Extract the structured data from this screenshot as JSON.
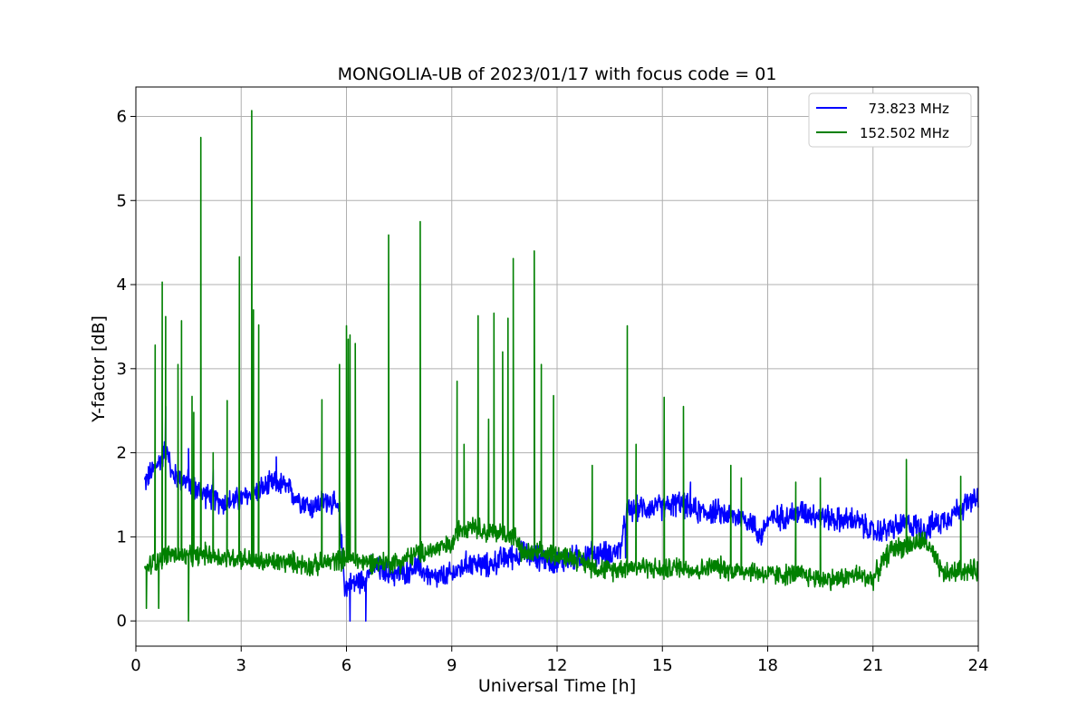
{
  "chart_data": {
    "type": "line",
    "title": "MONGOLIA-UB of 2023/01/17 with focus code = 01",
    "xlabel": "Universal Time [h]",
    "ylabel": "Y-factor [dB]",
    "xlim": [
      0,
      24
    ],
    "ylim": [
      -0.3,
      6.35
    ],
    "xticks": [
      0,
      3,
      6,
      9,
      12,
      15,
      18,
      21,
      24
    ],
    "yticks": [
      0,
      1,
      2,
      3,
      4,
      5,
      6
    ],
    "grid": true,
    "legend_position": "top-right",
    "series": [
      {
        "name": "  73.823 MHz",
        "color": "#0000ff",
        "x": [
          0.25,
          0.5,
          0.75,
          0.9,
          1.0,
          1.25,
          1.5,
          1.75,
          2.0,
          2.5,
          3.0,
          3.5,
          4.0,
          4.25,
          4.5,
          5.0,
          5.5,
          5.8,
          5.95,
          6.2,
          6.5,
          6.75,
          7.0,
          7.5,
          8.0,
          8.5,
          9.0,
          9.5,
          10.0,
          10.5,
          11.0,
          11.5,
          12.0,
          12.5,
          13.0,
          13.5,
          13.8,
          14.0,
          14.5,
          15.0,
          15.5,
          16.0,
          16.5,
          17.0,
          17.5,
          17.8,
          18.0,
          18.5,
          19.0,
          19.5,
          20.0,
          20.5,
          21.0,
          21.5,
          22.0,
          22.5,
          23.0,
          23.5,
          24.0
        ],
        "y": [
          1.65,
          1.8,
          1.95,
          2.1,
          1.75,
          1.7,
          1.65,
          1.55,
          1.5,
          1.4,
          1.45,
          1.55,
          1.65,
          1.6,
          1.5,
          1.35,
          1.45,
          1.3,
          0.4,
          0.45,
          0.5,
          0.65,
          0.6,
          0.55,
          0.65,
          0.5,
          0.55,
          0.7,
          0.65,
          0.75,
          0.8,
          0.75,
          0.7,
          0.75,
          0.8,
          0.8,
          0.85,
          1.3,
          1.35,
          1.35,
          1.4,
          1.3,
          1.3,
          1.25,
          1.2,
          1.0,
          1.2,
          1.25,
          1.3,
          1.25,
          1.2,
          1.2,
          1.05,
          1.1,
          1.15,
          1.1,
          1.2,
          1.35,
          1.45
        ],
        "spikes": [
          [
            0.85,
            2.55
          ],
          [
            1.5,
            2.05
          ],
          [
            2.2,
            1.8
          ],
          [
            4.0,
            1.95
          ],
          [
            6.1,
            0.0
          ],
          [
            6.55,
            0.0
          ],
          [
            13.95,
            0.75
          ],
          [
            15.8,
            1.65
          ]
        ]
      },
      {
        "name": "152.502 MHz",
        "color": "#008000",
        "x": [
          0.25,
          0.5,
          1.0,
          1.5,
          2.0,
          2.5,
          3.0,
          3.5,
          4.0,
          4.5,
          5.0,
          5.5,
          6.0,
          6.5,
          7.0,
          7.5,
          8.0,
          8.5,
          9.0,
          9.2,
          9.6,
          10.0,
          10.4,
          10.8,
          11.0,
          11.5,
          12.0,
          12.5,
          13.0,
          13.5,
          14.0,
          14.5,
          15.0,
          15.5,
          16.0,
          16.5,
          17.0,
          17.5,
          18.0,
          18.5,
          19.0,
          19.5,
          20.0,
          20.5,
          21.0,
          21.5,
          22.0,
          22.5,
          23.0,
          23.5,
          24.0
        ],
        "y": [
          0.6,
          0.7,
          0.8,
          0.75,
          0.8,
          0.75,
          0.75,
          0.7,
          0.7,
          0.7,
          0.65,
          0.7,
          0.75,
          0.7,
          0.7,
          0.7,
          0.8,
          0.85,
          0.9,
          1.1,
          1.15,
          1.05,
          1.05,
          1.0,
          0.8,
          0.8,
          0.8,
          0.75,
          0.65,
          0.6,
          0.65,
          0.65,
          0.6,
          0.65,
          0.6,
          0.65,
          0.6,
          0.6,
          0.55,
          0.55,
          0.55,
          0.5,
          0.5,
          0.55,
          0.5,
          0.85,
          0.9,
          0.95,
          0.55,
          0.6,
          0.6
        ],
        "spikes": [
          [
            0.3,
            0.15
          ],
          [
            0.55,
            3.28
          ],
          [
            0.65,
            0.15
          ],
          [
            0.75,
            4.03
          ],
          [
            0.85,
            3.62
          ],
          [
            1.2,
            3.05
          ],
          [
            1.3,
            3.57
          ],
          [
            1.5,
            0.0
          ],
          [
            1.6,
            2.67
          ],
          [
            1.65,
            2.48
          ],
          [
            1.85,
            5.75
          ],
          [
            2.2,
            2.0
          ],
          [
            2.6,
            2.62
          ],
          [
            2.95,
            4.33
          ],
          [
            3.3,
            6.07
          ],
          [
            3.35,
            3.7
          ],
          [
            3.5,
            3.52
          ],
          [
            5.3,
            2.63
          ],
          [
            5.8,
            3.05
          ],
          [
            6.0,
            3.51
          ],
          [
            6.05,
            3.35
          ],
          [
            6.1,
            3.4
          ],
          [
            6.25,
            3.3
          ],
          [
            7.2,
            4.59
          ],
          [
            8.1,
            4.75
          ],
          [
            9.15,
            2.85
          ],
          [
            9.35,
            2.1
          ],
          [
            9.75,
            3.63
          ],
          [
            10.05,
            2.4
          ],
          [
            10.2,
            3.66
          ],
          [
            10.45,
            3.2
          ],
          [
            10.6,
            3.6
          ],
          [
            10.75,
            4.31
          ],
          [
            11.35,
            4.4
          ],
          [
            11.55,
            3.05
          ],
          [
            11.9,
            2.68
          ],
          [
            13.0,
            1.85
          ],
          [
            14.0,
            3.51
          ],
          [
            14.25,
            2.1
          ],
          [
            15.05,
            2.66
          ],
          [
            15.6,
            2.55
          ],
          [
            16.95,
            1.85
          ],
          [
            17.25,
            1.7
          ],
          [
            18.8,
            1.65
          ],
          [
            19.5,
            1.7
          ],
          [
            21.95,
            1.92
          ],
          [
            23.5,
            1.72
          ]
        ]
      }
    ]
  }
}
